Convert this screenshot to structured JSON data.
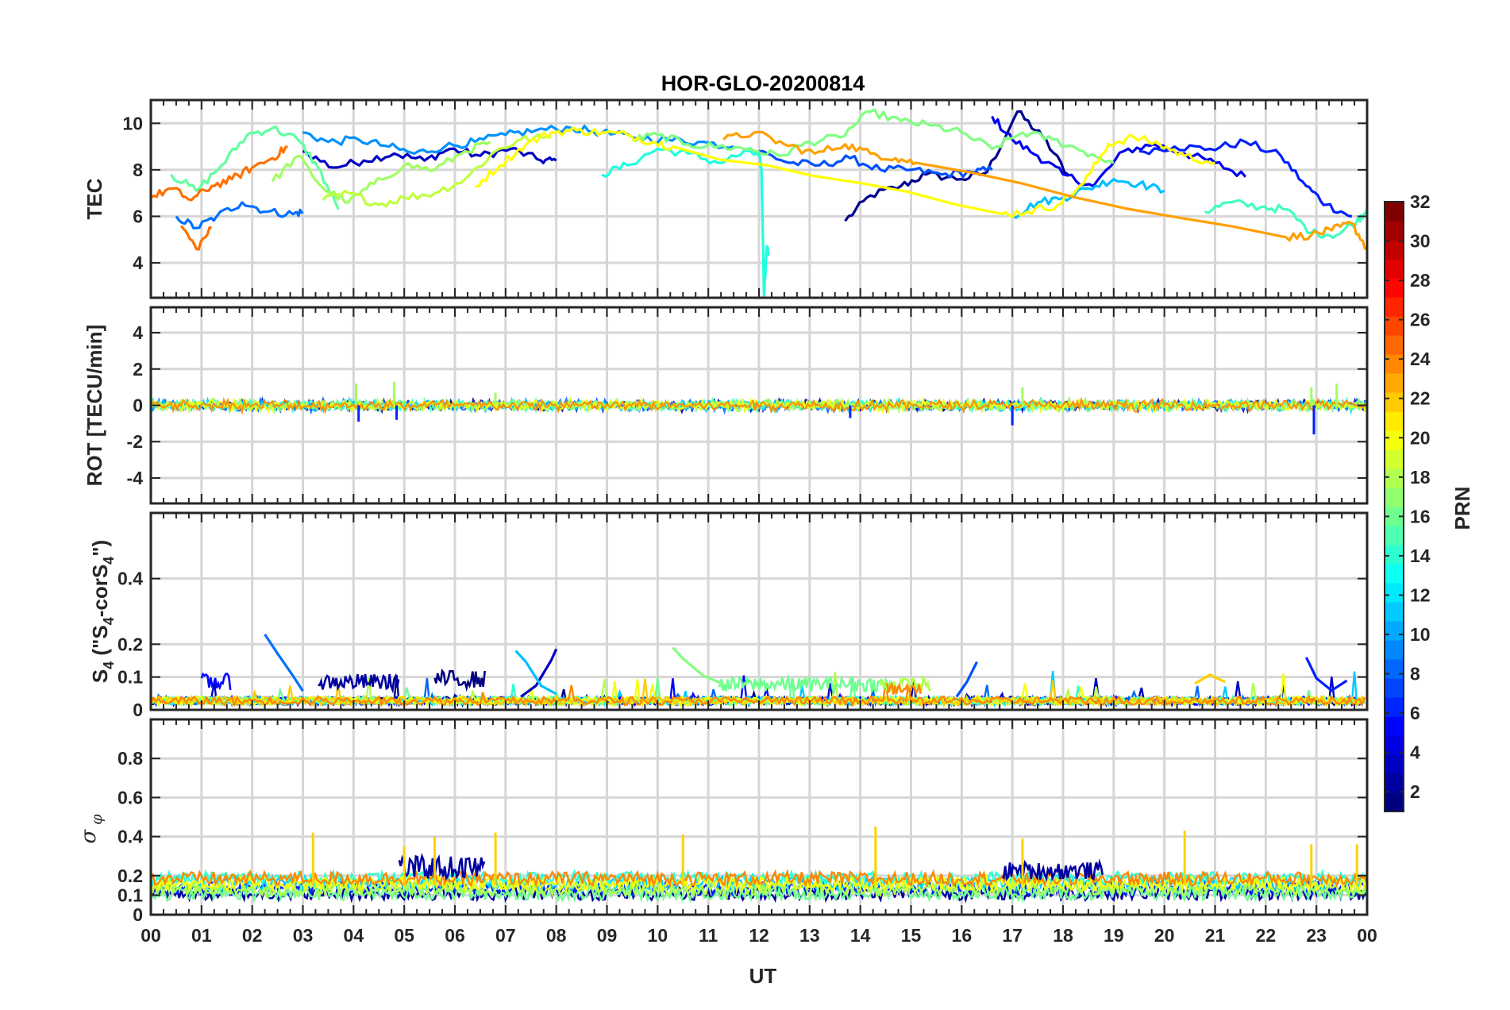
{
  "chart_data": {
    "type": "line",
    "title": "HOR-GLO-20200814",
    "xlabel": "UT",
    "x_tick_labels": [
      "00",
      "01",
      "02",
      "03",
      "04",
      "05",
      "06",
      "07",
      "08",
      "09",
      "10",
      "11",
      "12",
      "13",
      "14",
      "15",
      "16",
      "17",
      "18",
      "19",
      "20",
      "21",
      "22",
      "23",
      "00"
    ],
    "xlim_hours": [
      0,
      24
    ],
    "grid": true,
    "panels": [
      {
        "name": "TEC",
        "ylabel": "TEC",
        "ylim": [
          2.5,
          11
        ],
        "yticks": [
          4,
          6,
          8,
          10
        ],
        "ytick_labels": [
          "4",
          "6",
          "8",
          "10"
        ],
        "series": [
          {
            "prn": 1,
            "color": "#00008f",
            "x": [
              13.7,
              14.2,
              14.8,
              15.3,
              16.0,
              16.5,
              17.1,
              17.6,
              18.1
            ],
            "y": [
              5.8,
              6.9,
              7.3,
              7.8,
              7.6,
              7.9,
              10.5,
              9.4,
              7.8
            ]
          },
          {
            "prn": 2,
            "color": "#0000c4",
            "x": [
              3.0,
              3.6,
              4.2,
              4.8,
              5.4,
              5.9,
              6.5,
              7.1,
              7.7,
              8.0
            ],
            "y": [
              8.8,
              8.1,
              8.4,
              8.7,
              8.4,
              8.9,
              8.6,
              8.9,
              8.4,
              8.4
            ]
          },
          {
            "prn": 3,
            "color": "#0000f0",
            "x": [
              16.6,
              17.0,
              17.5,
              18.0,
              18.6,
              19.2,
              19.8,
              20.4,
              21.0,
              21.6
            ],
            "y": [
              10.3,
              9.3,
              8.6,
              7.8,
              7.3,
              8.8,
              9.1,
              8.7,
              8.3,
              7.7
            ]
          },
          {
            "prn": 5,
            "color": "#0020ff",
            "x": [
              19.5,
              20.2,
              20.9,
              21.6,
              22.3,
              22.8,
              23.2,
              23.7
            ],
            "y": [
              8.8,
              9.0,
              8.9,
              9.2,
              8.6,
              7.3,
              6.5,
              6.0
            ]
          },
          {
            "prn": 7,
            "color": "#0050ff",
            "x": [
              12.0,
              12.6,
              13.2,
              13.8,
              14.4,
              15.0,
              15.6,
              16.2,
              16.6
            ],
            "y": [
              8.8,
              8.3,
              8.2,
              8.5,
              8.0,
              8.0,
              7.8,
              7.9,
              8.0
            ]
          },
          {
            "prn": 8,
            "color": "#0070ff",
            "x": [
              0.5,
              0.9,
              1.3,
              1.8,
              2.3,
              2.8,
              3.0
            ],
            "y": [
              6.0,
              5.5,
              6.0,
              6.6,
              6.2,
              6.1,
              6.2
            ]
          },
          {
            "prn": 9,
            "color": "#0090ff",
            "x": [
              3.0,
              3.5,
              4.1,
              4.7,
              5.2,
              5.8,
              6.4,
              7.0,
              7.6,
              8.3,
              8.9,
              9.5,
              10.2,
              10.8,
              11.5
            ],
            "y": [
              9.6,
              9.2,
              9.3,
              9.0,
              8.7,
              9.0,
              9.2,
              9.5,
              9.7,
              9.8,
              9.6,
              9.4,
              9.3,
              9.2,
              9.0
            ]
          },
          {
            "prn": 11,
            "color": "#00c0ff",
            "x": [
              17.0,
              17.5,
              18.0,
              18.5,
              19.0,
              19.5,
              20.0
            ],
            "y": [
              6.0,
              6.6,
              6.8,
              7.2,
              7.6,
              7.4,
              7.1
            ]
          },
          {
            "prn": 13,
            "color": "#20ffdf",
            "x": [
              8.9,
              9.4,
              10.0,
              10.6,
              11.2,
              11.8,
              12.0,
              12.05,
              12.1,
              12.15,
              12.2
            ],
            "y": [
              7.8,
              8.2,
              8.9,
              8.7,
              8.3,
              8.8,
              8.6,
              8.0,
              2.6,
              4.6,
              4.4
            ]
          },
          {
            "prn": 14,
            "color": "#40ffbf",
            "x": [
              20.8,
              21.3,
              21.9,
              22.4,
              22.9,
              23.4,
              23.8,
              24.0
            ],
            "y": [
              6.2,
              6.6,
              6.4,
              6.3,
              5.3,
              5.2,
              5.8,
              6.3
            ]
          },
          {
            "prn": 15,
            "color": "#60ff9f",
            "x": [
              0.4,
              0.9,
              1.4,
              1.9,
              2.4,
              2.9,
              3.3,
              3.7
            ],
            "y": [
              7.8,
              7.1,
              8.2,
              9.5,
              9.8,
              9.3,
              8.1,
              6.3
            ]
          },
          {
            "prn": 16,
            "color": "#80ff80",
            "x": [
              9.5,
              10.0,
              10.6,
              11.2,
              11.8,
              12.4,
              13.0,
              13.6,
              14.2,
              14.8,
              15.4,
              16.0,
              16.6,
              17.2,
              17.8,
              18.4,
              19.0
            ],
            "y": [
              9.3,
              9.5,
              9.1,
              9.0,
              8.9,
              8.6,
              9.2,
              9.4,
              10.5,
              10.1,
              9.9,
              9.6,
              8.9,
              9.6,
              9.3,
              8.8,
              8.3
            ]
          },
          {
            "prn": 17,
            "color": "#a0ff60",
            "x": [
              2.4,
              2.9,
              3.4,
              3.9,
              4.4,
              5.0,
              5.6,
              6.2,
              6.7
            ],
            "y": [
              7.5,
              8.6,
              7.2,
              6.6,
              7.4,
              8.2,
              8.0,
              8.8,
              9.2
            ]
          },
          {
            "prn": 18,
            "color": "#c0ff40",
            "x": [
              3.4,
              3.9,
              4.5,
              5.0,
              5.6,
              6.2,
              6.8,
              7.3,
              7.9
            ],
            "y": [
              6.7,
              7.0,
              6.5,
              6.8,
              7.0,
              7.6,
              8.8,
              9.3,
              9.4
            ]
          },
          {
            "prn": 20,
            "color": "#ffff00",
            "x": [
              6.4,
              6.9,
              7.4,
              7.9,
              8.4,
              8.9,
              9.4,
              9.9,
              10.3,
              16.8,
              17.3,
              17.9,
              18.4,
              18.9,
              19.4,
              19.9,
              20.4,
              21.0
            ],
            "y": [
              7.3,
              8.2,
              9.1,
              9.6,
              9.7,
              9.6,
              9.5,
              9.2,
              9.0,
              6.1,
              6.2,
              6.5,
              7.4,
              9.1,
              9.4,
              9.1,
              8.6,
              8.3
            ]
          },
          {
            "prn": 22,
            "color": "#ffa000",
            "x": [
              11.3,
              11.9,
              12.5,
              13.1,
              13.7,
              14.2,
              14.7,
              15.1,
              22.4,
              22.9,
              23.3,
              23.7,
              24.0
            ],
            "y": [
              9.3,
              9.6,
              9.1,
              8.7,
              9.1,
              8.7,
              8.5,
              8.3,
              5.1,
              5.2,
              5.4,
              5.7,
              4.6
            ]
          },
          {
            "prn": 24,
            "color": "#ff7000",
            "x": [
              0.0,
              0.4,
              0.8,
              1.2,
              1.6,
              2.0,
              2.4,
              2.7,
              0.6,
              0.9,
              1.2
            ],
            "y": [
              6.8,
              7.2,
              6.7,
              7.3,
              7.6,
              8.1,
              8.5,
              9.0,
              5.6,
              4.6,
              5.5
            ]
          }
        ]
      },
      {
        "name": "ROT",
        "ylabel": "ROT [TECU/min]",
        "ylim": [
          -5.4,
          5.4
        ],
        "yticks": [
          -4,
          -2,
          0,
          2,
          4
        ],
        "ytick_labels": [
          "-4",
          "-2",
          "0",
          "2",
          "4"
        ],
        "typical_range": [
          -1.5,
          1.4
        ],
        "spikes": [
          {
            "x": 4.05,
            "y": 1.2
          },
          {
            "x": 4.1,
            "y": -0.9
          },
          {
            "x": 4.8,
            "y": 1.3
          },
          {
            "x": 4.85,
            "y": -0.8
          },
          {
            "x": 6.8,
            "y": 0.7
          },
          {
            "x": 13.8,
            "y": -0.7
          },
          {
            "x": 17.2,
            "y": 1.0
          },
          {
            "x": 17.0,
            "y": -1.1
          },
          {
            "x": 22.9,
            "y": 1.0
          },
          {
            "x": 22.95,
            "y": -1.6
          },
          {
            "x": 23.4,
            "y": 1.2
          }
        ]
      },
      {
        "name": "S4",
        "ylabel": "S4 (\"S4-corS4\")",
        "ylim": [
          0,
          0.6
        ],
        "yticks": [
          0,
          0.1,
          0.2,
          0.4
        ],
        "ytick_labels": [
          "0",
          "0.1",
          "0.2",
          "0.4"
        ],
        "events": [
          {
            "prn": 8,
            "color": "#0070ff",
            "x": [
              2.25,
              2.5,
              2.8,
              3.0
            ],
            "y": [
              0.23,
              0.17,
              0.1,
              0.06
            ]
          },
          {
            "prn": 2,
            "color": "#0000c4",
            "x": [
              7.3,
              7.6,
              7.9,
              8.0
            ],
            "y": [
              0.04,
              0.08,
              0.15,
              0.19
            ]
          },
          {
            "prn": 11,
            "color": "#00c0ff",
            "x": [
              7.2,
              7.4,
              7.7,
              8.0
            ],
            "y": [
              0.18,
              0.14,
              0.08,
              0.05
            ]
          },
          {
            "prn": 16,
            "color": "#80ff80",
            "x": [
              10.3,
              10.5,
              10.9,
              11.3
            ],
            "y": [
              0.19,
              0.16,
              0.1,
              0.08
            ]
          },
          {
            "prn": 7,
            "color": "#0050ff",
            "x": [
              15.9,
              16.1,
              16.3
            ],
            "y": [
              0.04,
              0.09,
              0.14
            ]
          },
          {
            "prn": 21,
            "color": "#ffd000",
            "x": [
              20.6,
              20.9,
              21.2
            ],
            "y": [
              0.08,
              0.11,
              0.09
            ]
          },
          {
            "prn": 5,
            "color": "#0020ff",
            "x": [
              22.8,
              23.0,
              23.3,
              23.6
            ],
            "y": [
              0.16,
              0.1,
              0.06,
              0.09
            ]
          }
        ]
      },
      {
        "name": "sigma_phi",
        "ylabel": "σφ",
        "ylim": [
          0,
          1.0
        ],
        "yticks": [
          0,
          0.1,
          0.2,
          0.4,
          0.6,
          0.8
        ],
        "ytick_labels": [
          "0",
          "0.1",
          "0.2",
          "0.4",
          "0.6",
          "0.8"
        ],
        "typical_range": [
          0.1,
          0.25
        ],
        "spikes": [
          {
            "x": 3.2,
            "y": 0.42
          },
          {
            "x": 5.0,
            "y": 0.35
          },
          {
            "x": 5.6,
            "y": 0.4
          },
          {
            "x": 6.8,
            "y": 0.42
          },
          {
            "x": 10.5,
            "y": 0.41
          },
          {
            "x": 14.3,
            "y": 0.45
          },
          {
            "x": 17.2,
            "y": 0.39
          },
          {
            "x": 20.4,
            "y": 0.43
          },
          {
            "x": 22.9,
            "y": 0.36
          },
          {
            "x": 23.8,
            "y": 0.36
          }
        ]
      }
    ],
    "colorbar": {
      "label": "PRN",
      "range": [
        1,
        32
      ],
      "ticks": [
        2,
        4,
        6,
        8,
        10,
        12,
        14,
        16,
        18,
        20,
        22,
        24,
        26,
        28,
        30,
        32
      ],
      "tick_labels": [
        "2",
        "4",
        "6",
        "8",
        "10",
        "12",
        "14",
        "16",
        "18",
        "20",
        "22",
        "24",
        "26",
        "28",
        "30",
        "32"
      ],
      "colormap": "jet"
    }
  }
}
